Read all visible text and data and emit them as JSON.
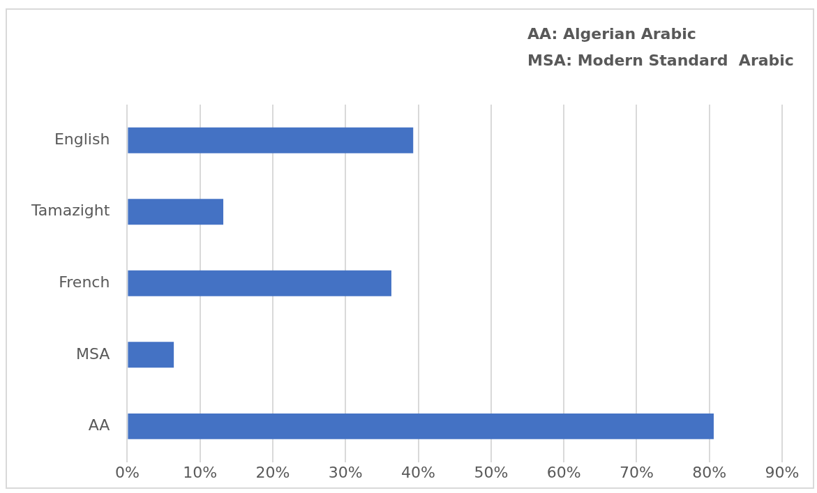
{
  "chart_data": {
    "type": "bar",
    "orientation": "horizontal",
    "categories": [
      "English",
      "Tamazight",
      "French",
      "MSA",
      "AA"
    ],
    "values": [
      39.3,
      13.2,
      36.3,
      6.4,
      80.6
    ],
    "color": "#4472c4",
    "xlim": [
      0,
      90
    ],
    "xticks": [
      {
        "value": 0,
        "label": "0%"
      },
      {
        "value": 10,
        "label": "10%"
      },
      {
        "value": 20,
        "label": "20%"
      },
      {
        "value": 30,
        "label": "30%"
      },
      {
        "value": 40,
        "label": "40%"
      },
      {
        "value": 50,
        "label": "50%"
      },
      {
        "value": 60,
        "label": "60%"
      },
      {
        "value": 70,
        "label": "70%"
      },
      {
        "value": 80,
        "label": "80%"
      },
      {
        "value": 90,
        "label": "90%"
      }
    ],
    "grid": "x",
    "legend": false,
    "annotations": [
      "AA: Algerian Arabic",
      "MSA: Modern Standard  Arabic"
    ]
  }
}
